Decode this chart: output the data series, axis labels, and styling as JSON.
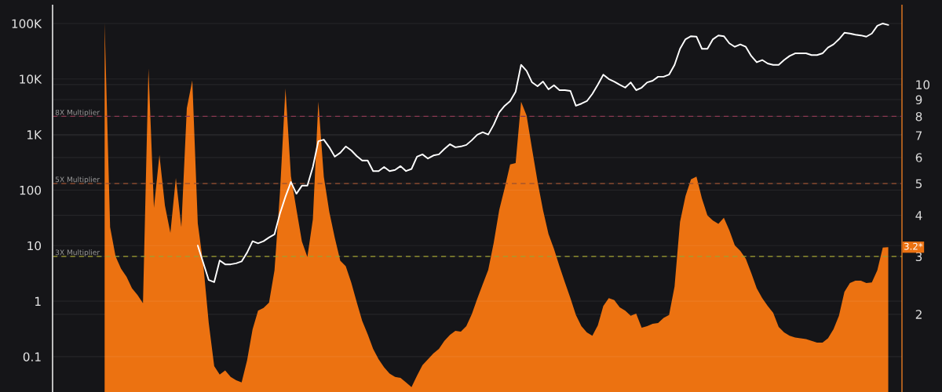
{
  "chart_data": [
    {
      "type": "area",
      "categories": [
        null,
        null,
        null,
        null,
        null,
        null,
        null,
        null,
        null,
        null,
        null,
        null,
        null,
        null,
        null,
        null,
        null,
        null,
        null,
        null,
        null,
        null,
        null,
        null,
        null,
        null,
        null,
        null,
        null,
        null,
        null,
        null,
        null,
        null,
        null,
        null,
        null,
        null,
        null,
        null,
        null,
        null,
        null,
        null,
        null,
        null,
        null,
        null,
        null,
        null,
        null,
        null,
        null,
        null,
        null,
        null,
        null,
        null,
        null,
        null,
        null,
        null,
        null,
        null,
        null,
        null,
        null,
        null,
        null,
        null,
        null,
        null,
        null,
        null,
        null,
        null,
        null,
        null,
        null,
        null,
        null,
        null,
        null,
        null,
        null,
        null,
        null,
        null,
        null,
        null,
        null,
        null,
        null,
        null,
        null,
        null,
        null,
        null,
        null,
        null,
        null,
        null,
        null,
        null,
        null,
        null,
        null,
        null,
        null,
        null,
        null,
        null,
        null,
        null,
        null,
        null,
        null,
        null,
        null,
        null,
        null,
        null,
        null,
        null,
        null,
        null,
        null,
        null,
        null,
        null,
        null,
        null,
        null,
        null,
        null,
        null,
        null,
        null,
        null,
        null,
        null,
        null,
        null,
        null
      ],
      "series": [
        {
          "color": "#ec7211",
          "values": [
            15.4,
            3.68,
            3.0,
            2.75,
            2.6,
            2.4,
            2.29,
            2.16,
            11.2,
            4.22,
            6.1,
            4.29,
            3.54,
            5.2,
            3.68,
            8.47,
            10.3,
            3.78,
            2.84,
            1.88,
            1.39,
            1.31,
            1.35,
            1.29,
            1.26,
            1.24,
            1.45,
            1.8,
            2.05,
            2.09,
            2.17,
            2.72,
            4.7,
            9.73,
            5.26,
            4.17,
            3.33,
            2.99,
            3.89,
            8.86,
            5.24,
            4.1,
            3.42,
            2.91,
            2.8,
            2.5,
            2.18,
            1.91,
            1.74,
            1.57,
            1.46,
            1.38,
            1.32,
            1.29,
            1.28,
            1.24,
            1.2,
            1.3,
            1.4,
            1.46,
            1.52,
            1.57,
            1.66,
            1.73,
            1.78,
            1.77,
            1.84,
            2.0,
            2.23,
            2.47,
            2.73,
            3.3,
            4.15,
            4.84,
            5.71,
            5.77,
            8.86,
            8.05,
            6.37,
            5.07,
            4.15,
            3.51,
            3.16,
            2.8,
            2.5,
            2.24,
            1.99,
            1.84,
            1.76,
            1.72,
            1.85,
            2.12,
            2.24,
            2.21,
            2.1,
            2.05,
            1.98,
            2.01,
            1.82,
            1.84,
            1.87,
            1.88,
            1.95,
            1.99,
            2.43,
            3.82,
            4.58,
            5.15,
            5.25,
            4.5,
            4.0,
            3.86,
            3.77,
            3.93,
            3.6,
            3.24,
            3.12,
            2.95,
            2.67,
            2.4,
            2.24,
            2.12,
            2.02,
            1.83,
            1.76,
            1.72,
            1.7,
            1.69,
            1.68,
            1.66,
            1.64,
            1.64,
            1.69,
            1.8,
            1.98,
            2.34,
            2.49,
            2.53,
            2.53,
            2.49,
            2.5,
            2.72,
            3.19,
            3.2
          ]
        }
      ],
      "log": true,
      "ylim": [
        1.16,
        17.4
      ],
      "yticks": [
        2,
        3,
        4,
        5,
        6,
        7,
        8,
        9,
        10
      ],
      "grid": "y",
      "ref_lines": [
        {
          "axis": "y",
          "value": 8,
          "label": "8X Multiplier",
          "color": "#8c3a52",
          "line_style": "dashed"
        },
        {
          "axis": "y",
          "value": 5,
          "label": "5X Multiplier",
          "color": "#9a5030",
          "line_style": "dashed"
        },
        {
          "axis": "y",
          "value": 3,
          "label": "3X Multiplier",
          "color": "#a0a030",
          "line_style": "dashed"
        }
      ],
      "annotations": [
        "3.2*"
      ]
    },
    {
      "type": "line",
      "categories": [
        null,
        null,
        null,
        null,
        null,
        null,
        null,
        null,
        null,
        null,
        null,
        null,
        null,
        null,
        null,
        null,
        null,
        null,
        null,
        null,
        null,
        null,
        null,
        null,
        null,
        null,
        null,
        null,
        null,
        null,
        null,
        null,
        null,
        null,
        null,
        null,
        null,
        null,
        null,
        null,
        null,
        null,
        null,
        null,
        null,
        null,
        null,
        null,
        null,
        null,
        null,
        null,
        null,
        null,
        null,
        null,
        null,
        null,
        null,
        null,
        null,
        null,
        null,
        null,
        null,
        null,
        null,
        null,
        null,
        null,
        null,
        null,
        null,
        null,
        null,
        null,
        null,
        null,
        null,
        null,
        null,
        null,
        null,
        null,
        null,
        null,
        null,
        null,
        null,
        null,
        null,
        null,
        null,
        null,
        null,
        null,
        null,
        null,
        null,
        null,
        null,
        null,
        null,
        null,
        null,
        null,
        null,
        null,
        null,
        null,
        null,
        null,
        null,
        null,
        null,
        null,
        null,
        null,
        null,
        null,
        null,
        null,
        null,
        null,
        null,
        null,
        null,
        null,
        null,
        null,
        null,
        null,
        null,
        null,
        null,
        null,
        null,
        null,
        null,
        null,
        null,
        null,
        null,
        null,
        null,
        null,
        null,
        null,
        null,
        null,
        null,
        null,
        null,
        null,
        null
      ],
      "series": [
        {
          "color": "#ffffff",
          "values": [
            null,
            null,
            null,
            null,
            null,
            null,
            null,
            null,
            null,
            null,
            null,
            null,
            null,
            null,
            null,
            null,
            null,
            null,
            null,
            null,
            null,
            null,
            null,
            null,
            null,
            null,
            10,
            4.9,
            2.4,
            2.2,
            5.4,
            4.6,
            4.6,
            4.8,
            5.2,
            7.5,
            12,
            11,
            12,
            14,
            16,
            38,
            76,
            140,
            86,
            120,
            120,
            260,
            760,
            810,
            590,
            400,
            470,
            610,
            520,
            410,
            340,
            340,
            220,
            220,
            260,
            220,
            230,
            270,
            220,
            240,
            400,
            440,
            370,
            420,
            440,
            550,
            670,
            590,
            610,
            650,
            790,
            990,
            1100,
            1000,
            1500,
            2500,
            3300,
            4000,
            5900,
            18000,
            14000,
            8700,
            7400,
            9000,
            6500,
            7700,
            6300,
            6300,
            6100,
            3300,
            3600,
            4000,
            5400,
            7900,
            12000,
            10000,
            9000,
            7900,
            7000,
            8700,
            6300,
            7000,
            8700,
            9300,
            11000,
            11000,
            12000,
            18000,
            35000,
            52000,
            59000,
            58000,
            35000,
            35000,
            52000,
            61000,
            59000,
            44000,
            38000,
            42000,
            38000,
            26000,
            20000,
            22000,
            19000,
            18000,
            18000,
            22000,
            26000,
            29000,
            29000,
            29000,
            27000,
            27000,
            29000,
            37000,
            42000,
            52000,
            68000,
            66000,
            63000,
            61000,
            58000,
            66000,
            91000,
            100000,
            94000,
            null,
            null
          ]
        }
      ],
      "log": true,
      "ylim": [
        0.0231,
        211000
      ],
      "yticks": [
        0.1,
        1,
        10,
        100,
        {
          "value": 1000,
          "label": "1K"
        },
        {
          "value": 10000,
          "label": "10K"
        },
        {
          "value": 100000,
          "label": "100K"
        }
      ],
      "grid": "y"
    }
  ]
}
